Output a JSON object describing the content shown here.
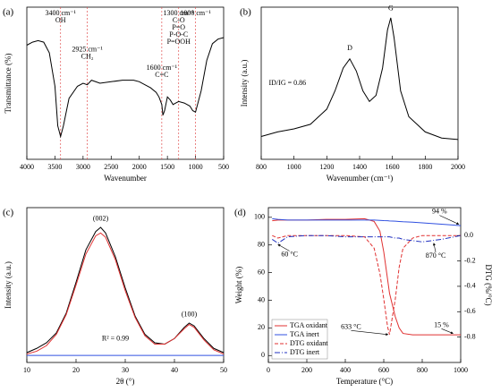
{
  "chart_data": [
    {
      "type": "line",
      "label": "(a)",
      "xlabel": "Wavenumber",
      "ylabel": "Transmittance (%)",
      "xlim": [
        4000,
        500
      ],
      "xticks": [
        4000,
        3500,
        3000,
        2500,
        2000,
        1500,
        1000,
        500
      ],
      "ylim": [
        0,
        100
      ],
      "vlines": [
        3400,
        2925,
        1600,
        1300,
        1000
      ],
      "vline_color": "#e05050",
      "x": [
        4000,
        3900,
        3800,
        3700,
        3600,
        3500,
        3450,
        3400,
        3350,
        3250,
        3100,
        3000,
        2925,
        2850,
        2700,
        2500,
        2300,
        2100,
        2000,
        1900,
        1800,
        1700,
        1650,
        1600,
        1580,
        1550,
        1500,
        1450,
        1400,
        1350,
        1300,
        1200,
        1100,
        1050,
        1000,
        900,
        800,
        700,
        600,
        500
      ],
      "series": [
        {
          "color": "#000000",
          "values": [
            75,
            77,
            78,
            77,
            70,
            48,
            22,
            15,
            22,
            40,
            48,
            50,
            49,
            52,
            50,
            51,
            52,
            52,
            51,
            49,
            47,
            44,
            41,
            36,
            29,
            32,
            41,
            39,
            36,
            37,
            38,
            37,
            35,
            32,
            31,
            45,
            65,
            76,
            79,
            80
          ]
        }
      ],
      "annotations": [
        {
          "x": 3400,
          "y": 96,
          "lines": [
            "3400 cm⁻¹",
            "OH"
          ]
        },
        {
          "x": 2925,
          "y": 72,
          "lines": [
            "2925 cm⁻¹",
            "CH₂"
          ]
        },
        {
          "x": 1600,
          "y": 60,
          "lines": [
            "1600 cm⁻¹",
            "C=C"
          ]
        },
        {
          "x": 1300,
          "y": 96,
          "lines": [
            "1300 cm⁻¹",
            "C-O",
            "P=O",
            "P-O-C",
            "P=OOH"
          ]
        },
        {
          "x": 1000,
          "y": 96,
          "lines": [
            "1000 cm⁻¹"
          ]
        }
      ]
    },
    {
      "type": "line",
      "label": "(b)",
      "xlabel": "Wavenumber (cm⁻¹)",
      "ylabel": "Intensity (a.u.)",
      "xlim": [
        800,
        2000
      ],
      "xticks": [
        800,
        1000,
        1200,
        1400,
        1600,
        1800,
        2000
      ],
      "ylim": [
        0,
        100
      ],
      "x": [
        800,
        900,
        1000,
        1100,
        1200,
        1250,
        1300,
        1340,
        1380,
        1420,
        1460,
        1500,
        1540,
        1570,
        1590,
        1610,
        1650,
        1700,
        1800,
        1900,
        2000
      ],
      "series": [
        {
          "color": "#000000",
          "values": [
            15,
            18,
            20,
            23,
            33,
            45,
            60,
            66,
            58,
            45,
            38,
            42,
            60,
            85,
            93,
            80,
            45,
            28,
            18,
            14,
            13
          ]
        }
      ],
      "annotations": [
        {
          "x": 1340,
          "y": 73,
          "lines": [
            "D"
          ]
        },
        {
          "x": 1590,
          "y": 99,
          "lines": [
            "G"
          ]
        },
        {
          "x": 960,
          "y": 50,
          "lines": [
            "ID/IG = 0.86"
          ]
        }
      ]
    },
    {
      "type": "line",
      "label": "(c)",
      "xlabel": "2θ (°)",
      "ylabel": "Intensity (a.u.)",
      "xlim": [
        10,
        50
      ],
      "xticks": [
        10,
        20,
        30,
        40,
        50
      ],
      "ylim": [
        -5,
        105
      ],
      "x": [
        10,
        12,
        14,
        16,
        18,
        20,
        22,
        24,
        25,
        26,
        28,
        30,
        32,
        34,
        36,
        38,
        40,
        42,
        43,
        44,
        46,
        48,
        50
      ],
      "series": [
        {
          "color": "#000000",
          "values": [
            2,
            5,
            9,
            16,
            30,
            52,
            75,
            88,
            91,
            87,
            70,
            48,
            28,
            15,
            9,
            8,
            12,
            20,
            23,
            21,
            12,
            5,
            2
          ]
        },
        {
          "color": "#e03030",
          "values": [
            1,
            3,
            7,
            15,
            29,
            50,
            72,
            85,
            87,
            84,
            68,
            46,
            27,
            14,
            8,
            8,
            12,
            19,
            22,
            20,
            11,
            4,
            1
          ]
        },
        {
          "color": "#3050e0",
          "values": [
            0,
            0,
            0,
            0,
            0,
            0,
            0,
            0,
            0,
            0,
            0,
            0,
            0,
            0,
            0,
            0,
            0,
            0,
            0,
            0,
            0,
            0,
            0
          ]
        }
      ],
      "annotations": [
        {
          "x": 25,
          "y": 97,
          "lines": [
            "(002)"
          ]
        },
        {
          "x": 43,
          "y": 29,
          "lines": [
            "(100)"
          ]
        },
        {
          "x": 28,
          "y": 12,
          "lines": [
            "R² = 0.99"
          ]
        }
      ]
    },
    {
      "type": "line",
      "label": "(d)",
      "xlabel": "Temperature (°C)",
      "ylabel": "Weight (%)",
      "y2label": "DTG (%/°C)",
      "xlim": [
        0,
        1000
      ],
      "xticks": [
        0,
        200,
        400,
        600,
        800,
        1000
      ],
      "ylim": [
        -5,
        107
      ],
      "yticks": [
        0,
        20,
        40,
        60,
        80,
        100
      ],
      "y2lim": [
        -1.0,
        0.22
      ],
      "y2ticks": [
        {
          "value": 0,
          "label": "0.0"
        },
        -0.2,
        -0.4,
        -0.6,
        -0.8
      ],
      "legend": "lower left",
      "x": [
        20,
        50,
        100,
        200,
        300,
        400,
        500,
        550,
        580,
        600,
        620,
        630,
        660,
        680,
        700,
        750,
        800,
        900,
        1000
      ],
      "series": [
        {
          "name": "TGA oxidant",
          "color": "#e03030",
          "dash": "solid",
          "values": [
            97.5,
            98,
            98,
            98,
            98.5,
            98.5,
            99,
            97,
            90,
            75,
            55,
            45,
            28,
            20,
            16,
            15,
            15,
            15,
            15
          ]
        },
        {
          "name": "TGA inert",
          "color": "#3050e0",
          "dash": "solid",
          "values": [
            99,
            98.5,
            98,
            98,
            98,
            98,
            98,
            98,
            97.8,
            97.6,
            97.5,
            97.4,
            97.2,
            97,
            96.8,
            96.5,
            96,
            95,
            94
          ]
        },
        {
          "name": "DTG oxidant",
          "color": "#e03030",
          "dash": "dashed",
          "axis": "y2",
          "values": [
            0,
            -0.02,
            0,
            0,
            0,
            0,
            -0.01,
            -0.1,
            -0.3,
            -0.5,
            -0.72,
            -0.78,
            -0.5,
            -0.25,
            -0.1,
            -0.02,
            0,
            0,
            0
          ]
        },
        {
          "name": "DTG inert",
          "color": "#2030c0",
          "dash": "dashdot",
          "axis": "y2",
          "values": [
            -0.03,
            -0.06,
            -0.01,
            0,
            0,
            -0.01,
            -0.01,
            -0.01,
            -0.01,
            -0.01,
            -0.01,
            -0.01,
            -0.02,
            -0.02,
            -0.03,
            -0.04,
            -0.05,
            -0.03,
            0
          ]
        }
      ],
      "annotations": [
        {
          "x": 890,
          "y": 104,
          "lines": [
            "94 %"
          ],
          "arrow_to": [
            990,
            95
          ]
        },
        {
          "x": 900,
          "y": 22,
          "lines": [
            "15 %"
          ],
          "arrow_to": [
            960,
            16
          ]
        },
        {
          "x": 110,
          "y": -0.15,
          "axis": "y2",
          "lines": [
            "60 °C"
          ],
          "arrow_to": [
            50,
            -0.07
          ]
        },
        {
          "x": 870,
          "y": -0.16,
          "axis": "y2",
          "lines": [
            "870 °C"
          ],
          "arrow_to": [
            860,
            -0.06
          ]
        },
        {
          "x": 430,
          "y": -0.72,
          "axis": "y2",
          "lines": [
            "633 °C"
          ],
          "arrow_to": [
            622,
            -0.78
          ]
        }
      ]
    }
  ]
}
